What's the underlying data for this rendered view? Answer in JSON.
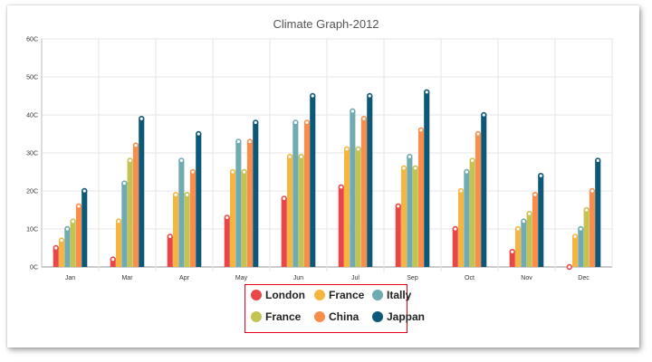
{
  "chart_data": {
    "type": "bar",
    "title": "Climate Graph-2012",
    "xlabel": "",
    "ylabel": "",
    "ylim": [
      0,
      60
    ],
    "yticks": [
      "0C",
      "10C",
      "20C",
      "30C",
      "40C",
      "50C",
      "60C"
    ],
    "categories": [
      "Jan",
      "Mar",
      "Apr",
      "May",
      "Jun",
      "Jul",
      "Sep",
      "Oct",
      "Nov",
      "Dec"
    ],
    "grid": true,
    "legend_position": "bottom",
    "series": [
      {
        "name": "London",
        "color": "#e94649",
        "values": [
          5,
          2,
          8,
          13,
          18,
          21,
          16,
          10,
          4,
          0
        ]
      },
      {
        "name": "France",
        "color": "#f6b53f",
        "values": [
          7,
          12,
          19,
          25,
          29,
          31,
          26,
          20,
          10,
          8
        ]
      },
      {
        "name": "Itally",
        "color": "#6fabb1",
        "values": [
          10,
          22,
          28,
          33,
          38,
          41,
          29,
          25,
          12,
          10
        ]
      },
      {
        "name": "France",
        "color": "#c3c354",
        "values": [
          12,
          28,
          19,
          25,
          29,
          31,
          26,
          28,
          14,
          15
        ]
      },
      {
        "name": "China",
        "color": "#f98d49",
        "values": [
          16,
          32,
          25,
          33,
          38,
          39,
          36,
          35,
          19,
          20
        ]
      },
      {
        "name": "Jappan",
        "color": "#0d5876",
        "values": [
          20,
          39,
          35,
          38,
          45,
          45,
          46,
          40,
          24,
          28
        ]
      }
    ]
  }
}
